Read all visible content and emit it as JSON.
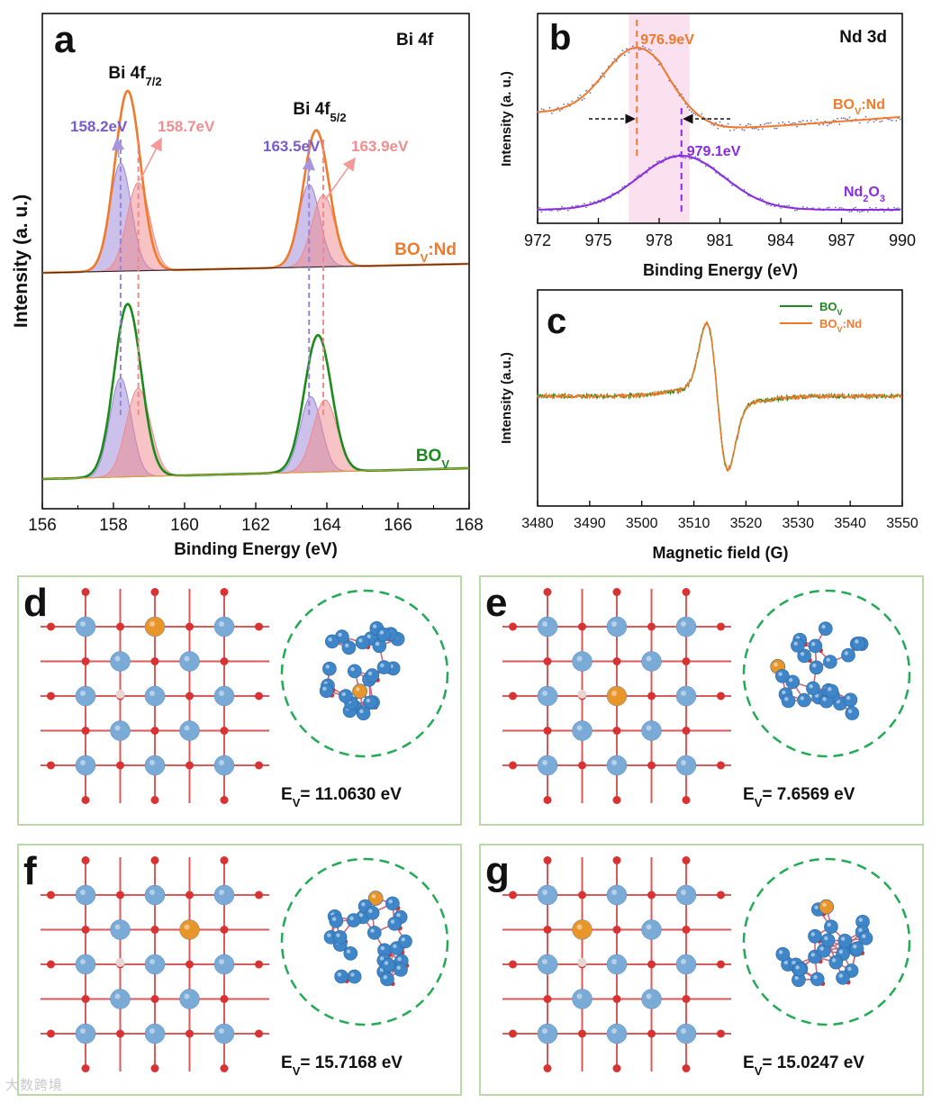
{
  "chart_data": [
    {
      "panel": "a",
      "type": "line",
      "title": "Bi 4f",
      "xlabel": "Binding Energy (eV)",
      "ylabel": "Intensity (a. u.)",
      "xlim": [
        156,
        168
      ],
      "xticks": [
        "156",
        "158",
        "160",
        "162",
        "164",
        "166",
        "168"
      ],
      "grid": false,
      "peak_labels": [
        {
          "main": "Bi 4f",
          "sub": "7/2",
          "x": 158.4
        },
        {
          "main": "Bi 4f",
          "sub": "5/2",
          "x": 163.7
        }
      ],
      "series": [
        {
          "name": "BOV:Nd",
          "label_main": "BO",
          "label_sub": "V",
          "label_tail": ":Nd",
          "color": "#f07a2a",
          "baseline": 1.25,
          "peaks": [
            {
              "center": 158.4,
              "height": 1.0,
              "width": 0.36
            },
            {
              "center": 163.7,
              "height": 0.76,
              "width": 0.36
            }
          ],
          "components": [
            {
              "center": 158.2,
              "height": 0.6,
              "width": 0.3,
              "color": "#9a84d6",
              "label": "158.2eV"
            },
            {
              "center": 158.7,
              "height": 0.49,
              "width": 0.32,
              "color": "#f0888a",
              "label": "158.7eV"
            },
            {
              "center": 163.5,
              "height": 0.46,
              "width": 0.3,
              "color": "#9a84d6",
              "label": "163.5eV"
            },
            {
              "center": 163.9,
              "height": 0.4,
              "width": 0.32,
              "color": "#f0888a",
              "label": "163.9eV"
            }
          ]
        },
        {
          "name": "BOV",
          "label_main": "BO",
          "label_sub": "V",
          "label_tail": "",
          "color": "#1a8a1a",
          "baseline": 0.1,
          "peaks": [
            {
              "center": 158.4,
              "height": 0.96,
              "width": 0.38
            },
            {
              "center": 163.75,
              "height": 0.76,
              "width": 0.38
            }
          ],
          "components": [
            {
              "center": 158.2,
              "height": 0.55,
              "width": 0.3,
              "color": "#9a84d6"
            },
            {
              "center": 158.7,
              "height": 0.49,
              "width": 0.34,
              "color": "#f0888a"
            },
            {
              "center": 163.55,
              "height": 0.42,
              "width": 0.3,
              "color": "#9a84d6"
            },
            {
              "center": 163.95,
              "height": 0.4,
              "width": 0.34,
              "color": "#f0888a"
            }
          ]
        }
      ]
    },
    {
      "panel": "b",
      "type": "line",
      "title": "Nd 3d",
      "xlabel": "Binding Energy (eV)",
      "ylabel": "Intensity (a. u.)",
      "xlim": [
        972,
        990
      ],
      "xticks": [
        "972",
        "975",
        "978",
        "981",
        "984",
        "987",
        "990"
      ],
      "grid": false,
      "highlight_range": [
        976.5,
        979.5
      ],
      "series": [
        {
          "name": "BOV:Nd",
          "label_main": "BO",
          "label_sub": "V",
          "label_tail": ":Nd",
          "color": "#f07a2a",
          "peak": 976.9,
          "peak_label": "976.9eV"
        },
        {
          "name": "Nd2O3",
          "label_main": "Nd",
          "label_sub": "2",
          "label_tail": "O",
          "label_sub2": "3",
          "color": "#8a2be2",
          "peak": 979.1,
          "peak_label": "979.1eV"
        }
      ]
    },
    {
      "panel": "c",
      "type": "line",
      "xlabel": "Magnetic field (G)",
      "ylabel": "Intensity (a.u.)",
      "xlim": [
        3480,
        3550
      ],
      "xticks": [
        "3480",
        "3490",
        "3500",
        "3510",
        "3520",
        "3530",
        "3540",
        "3550"
      ],
      "grid": false,
      "legend": "top-right",
      "center_field": 3514.5,
      "series": [
        {
          "name": "BOV",
          "label_main": "BO",
          "label_sub": "V",
          "label_tail": "",
          "color": "#1a8a1a"
        },
        {
          "name": "BOV:Nd",
          "label_main": "BO",
          "label_sub": "V",
          "label_tail": ":Nd",
          "color": "#f07a2a"
        }
      ]
    }
  ],
  "panels_structure": [
    {
      "panel": "d",
      "ev_label": "E",
      "ev_sub": "V",
      "ev_value": "= 11.0630 eV"
    },
    {
      "panel": "e",
      "ev_label": "E",
      "ev_sub": "V",
      "ev_value": "= 7.6569 eV"
    },
    {
      "panel": "f",
      "ev_label": "E",
      "ev_sub": "V",
      "ev_value": "= 15.7168 eV"
    },
    {
      "panel": "g",
      "ev_label": "E",
      "ev_sub": "V",
      "ev_value": "= 15.0247 eV"
    }
  ],
  "colors": {
    "bi_atom": "#7aaad6",
    "dark_atom": "#3e86c8",
    "oxygen": "#d93232",
    "nd_atom": "#e8962a",
    "vacancy": "#e8d6d2",
    "frame": "#bcd8a8",
    "circle": "#22aa55"
  },
  "watermark": "大数跨境"
}
